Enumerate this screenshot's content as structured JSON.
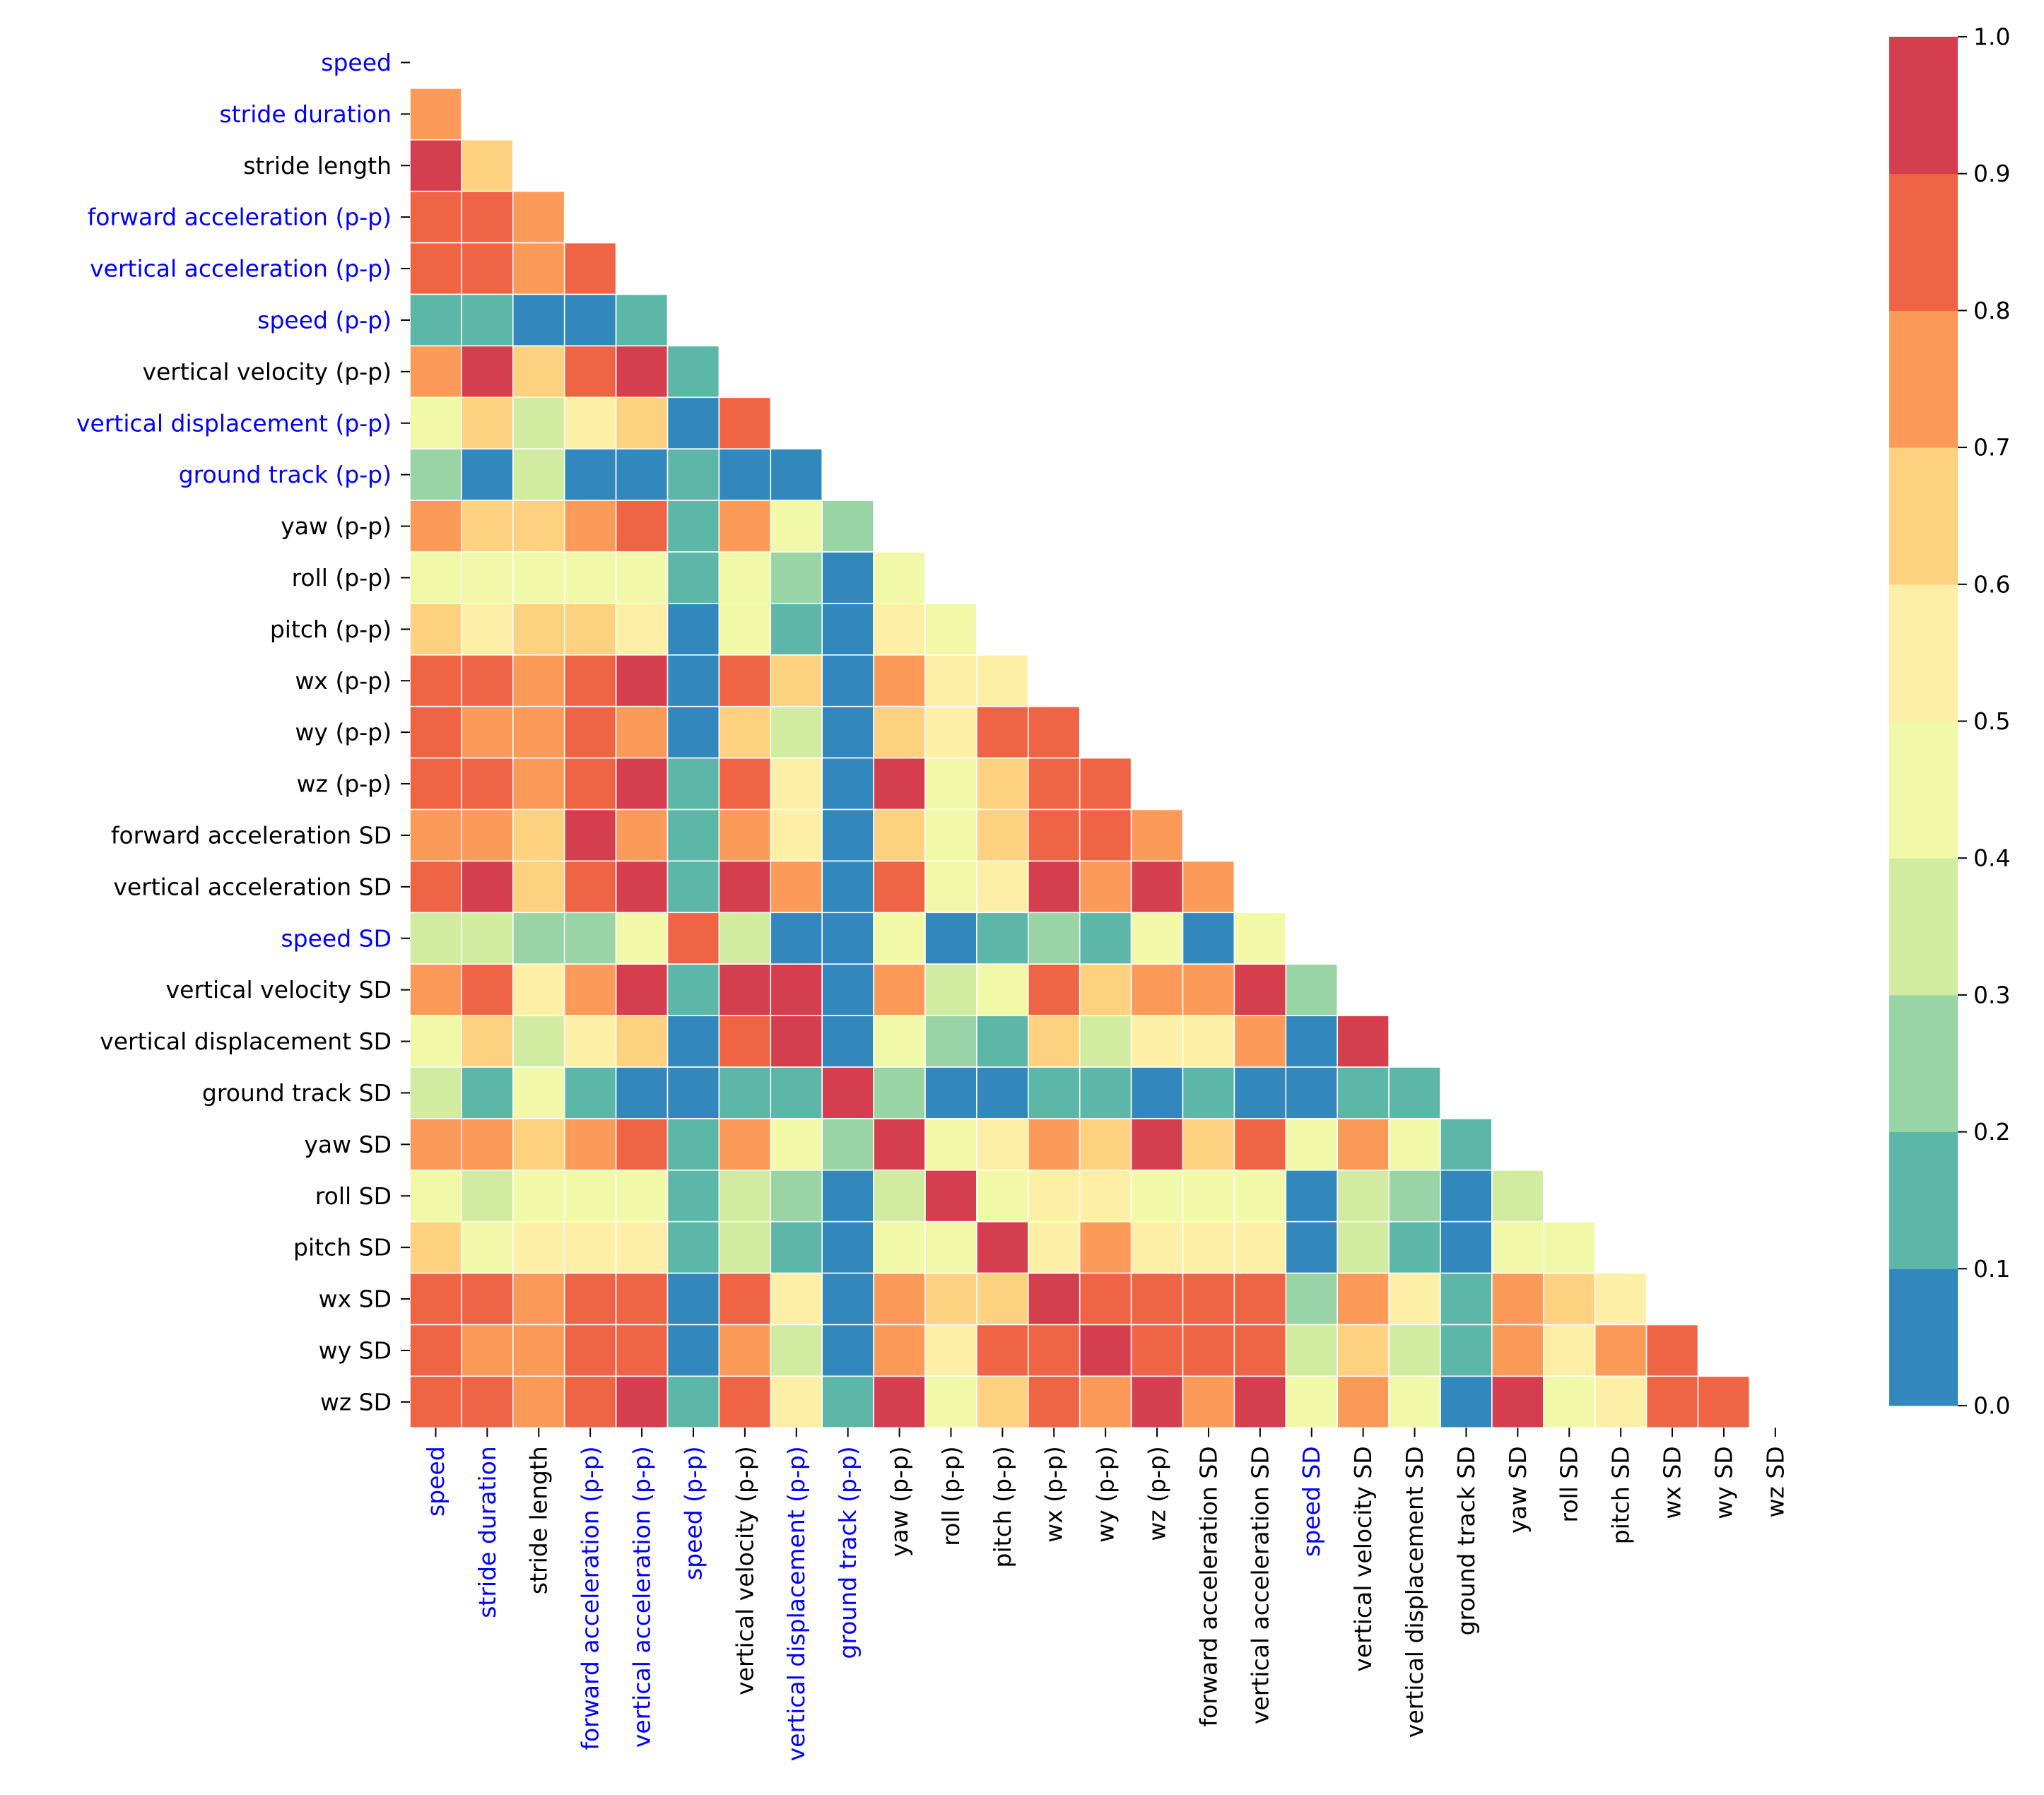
{
  "chart_data": {
    "type": "heatmap",
    "title": "",
    "xlabel": "",
    "ylabel": "",
    "variables": [
      "speed",
      "stride duration",
      "stride length",
      "forward acceleration (p-p)",
      "vertical acceleration (p-p)",
      "speed (p-p)",
      "vertical velocity (p-p)",
      "vertical displacement (p-p)",
      "ground track (p-p)",
      "yaw (p-p)",
      "roll (p-p)",
      "pitch (p-p)",
      "wx (p-p)",
      "wy (p-p)",
      "wz (p-p)",
      "forward acceleration SD",
      "vertical acceleration SD",
      "speed SD",
      "vertical velocity SD",
      "vertical displacement SD",
      "ground track SD",
      "yaw SD",
      "roll SD",
      "pitch SD",
      "wx SD",
      "wy SD",
      "wz SD"
    ],
    "highlighted_variables": [
      "speed",
      "stride duration",
      "forward acceleration (p-p)",
      "vertical acceleration (p-p)",
      "speed (p-p)",
      "vertical displacement (p-p)",
      "ground track (p-p)",
      "speed SD"
    ],
    "highlight_color": "#0000ff",
    "label_color": "#000000",
    "mask": "upper triangle incl. diagonal",
    "values_lower_triangle": [
      [],
      [
        0.75
      ],
      [
        0.95,
        0.65
      ],
      [
        0.85,
        0.85,
        0.75
      ],
      [
        0.85,
        0.85,
        0.75,
        0.85
      ],
      [
        0.15,
        0.15,
        0.05,
        0.05,
        0.15
      ],
      [
        0.75,
        0.95,
        0.65,
        0.85,
        0.95,
        0.15
      ],
      [
        0.45,
        0.65,
        0.35,
        0.55,
        0.65,
        0.05,
        0.85
      ],
      [
        0.25,
        0.05,
        0.35,
        0.05,
        0.05,
        0.15,
        0.05,
        0.05
      ],
      [
        0.75,
        0.65,
        0.65,
        0.75,
        0.85,
        0.15,
        0.75,
        0.45,
        0.25
      ],
      [
        0.45,
        0.45,
        0.45,
        0.45,
        0.45,
        0.15,
        0.45,
        0.25,
        0.05,
        0.45
      ],
      [
        0.65,
        0.55,
        0.65,
        0.65,
        0.55,
        0.05,
        0.45,
        0.15,
        0.05,
        0.55,
        0.45
      ],
      [
        0.85,
        0.85,
        0.75,
        0.85,
        0.95,
        0.05,
        0.85,
        0.65,
        0.05,
        0.75,
        0.55,
        0.55
      ],
      [
        0.85,
        0.75,
        0.75,
        0.85,
        0.75,
        0.05,
        0.65,
        0.35,
        0.05,
        0.65,
        0.55,
        0.85,
        0.85
      ],
      [
        0.85,
        0.85,
        0.75,
        0.85,
        0.95,
        0.15,
        0.85,
        0.55,
        0.05,
        0.95,
        0.45,
        0.65,
        0.85,
        0.85
      ],
      [
        0.75,
        0.75,
        0.65,
        0.95,
        0.75,
        0.15,
        0.75,
        0.55,
        0.05,
        0.65,
        0.45,
        0.65,
        0.85,
        0.85,
        0.75
      ],
      [
        0.85,
        0.95,
        0.65,
        0.85,
        0.95,
        0.15,
        0.95,
        0.75,
        0.05,
        0.85,
        0.45,
        0.55,
        0.95,
        0.75,
        0.95,
        0.75
      ],
      [
        0.35,
        0.35,
        0.25,
        0.25,
        0.45,
        0.85,
        0.35,
        0.05,
        0.05,
        0.45,
        0.05,
        0.15,
        0.25,
        0.15,
        0.45,
        0.05,
        0.45
      ],
      [
        0.75,
        0.85,
        0.55,
        0.75,
        0.95,
        0.15,
        0.95,
        0.95,
        0.05,
        0.75,
        0.35,
        0.45,
        0.85,
        0.65,
        0.75,
        0.75,
        0.95,
        0.25
      ],
      [
        0.45,
        0.65,
        0.35,
        0.55,
        0.65,
        0.05,
        0.85,
        0.95,
        0.05,
        0.45,
        0.25,
        0.15,
        0.65,
        0.35,
        0.55,
        0.55,
        0.75,
        0.05,
        0.95
      ],
      [
        0.35,
        0.15,
        0.45,
        0.15,
        0.05,
        0.05,
        0.15,
        0.15,
        0.95,
        0.25,
        0.05,
        0.05,
        0.15,
        0.15,
        0.05,
        0.15,
        0.05,
        0.05,
        0.15,
        0.15
      ],
      [
        0.75,
        0.75,
        0.65,
        0.75,
        0.85,
        0.15,
        0.75,
        0.45,
        0.25,
        0.95,
        0.45,
        0.55,
        0.75,
        0.65,
        0.95,
        0.65,
        0.85,
        0.45,
        0.75,
        0.45,
        0.15
      ],
      [
        0.45,
        0.35,
        0.45,
        0.45,
        0.45,
        0.15,
        0.35,
        0.25,
        0.05,
        0.35,
        0.95,
        0.45,
        0.55,
        0.55,
        0.45,
        0.45,
        0.45,
        0.05,
        0.35,
        0.25,
        0.05,
        0.35
      ],
      [
        0.65,
        0.45,
        0.55,
        0.55,
        0.55,
        0.15,
        0.35,
        0.15,
        0.05,
        0.45,
        0.45,
        0.95,
        0.55,
        0.75,
        0.55,
        0.55,
        0.55,
        0.05,
        0.35,
        0.15,
        0.05,
        0.45,
        0.45
      ],
      [
        0.85,
        0.85,
        0.75,
        0.85,
        0.85,
        0.05,
        0.85,
        0.55,
        0.05,
        0.75,
        0.65,
        0.65,
        0.95,
        0.85,
        0.85,
        0.85,
        0.85,
        0.25,
        0.75,
        0.55,
        0.15,
        0.75,
        0.65,
        0.55
      ],
      [
        0.85,
        0.75,
        0.75,
        0.85,
        0.85,
        0.05,
        0.75,
        0.35,
        0.05,
        0.75,
        0.55,
        0.85,
        0.85,
        0.95,
        0.85,
        0.85,
        0.85,
        0.35,
        0.65,
        0.35,
        0.15,
        0.75,
        0.55,
        0.75,
        0.85
      ],
      [
        0.85,
        0.85,
        0.75,
        0.85,
        0.95,
        0.15,
        0.85,
        0.55,
        0.15,
        0.95,
        0.45,
        0.65,
        0.85,
        0.75,
        0.95,
        0.75,
        0.95,
        0.45,
        0.75,
        0.45,
        0.05,
        0.95,
        0.45,
        0.55,
        0.85,
        0.85
      ]
    ],
    "colorbar": {
      "vmin": 0.0,
      "vmax": 1.0,
      "ticks": [
        "0.0",
        "0.1",
        "0.2",
        "0.3",
        "0.4",
        "0.5",
        "0.6",
        "0.7",
        "0.8",
        "0.9",
        "1.0"
      ],
      "bins": [
        {
          "range": [
            0.0,
            0.1
          ],
          "color": "#3288bd"
        },
        {
          "range": [
            0.1,
            0.2
          ],
          "color": "#5db7a9"
        },
        {
          "range": [
            0.2,
            0.3
          ],
          "color": "#99d5a4"
        },
        {
          "range": [
            0.3,
            0.4
          ],
          "color": "#d1eca0"
        },
        {
          "range": [
            0.4,
            0.5
          ],
          "color": "#f1f9a8"
        },
        {
          "range": [
            0.5,
            0.6
          ],
          "color": "#fdf0a6"
        },
        {
          "range": [
            0.6,
            0.7
          ],
          "color": "#fdd180"
        },
        {
          "range": [
            0.7,
            0.8
          ],
          "color": "#fb9a59"
        },
        {
          "range": [
            0.8,
            0.9
          ],
          "color": "#ee6445"
        },
        {
          "range": [
            0.9,
            1.0
          ],
          "color": "#d53e4f"
        }
      ]
    }
  }
}
